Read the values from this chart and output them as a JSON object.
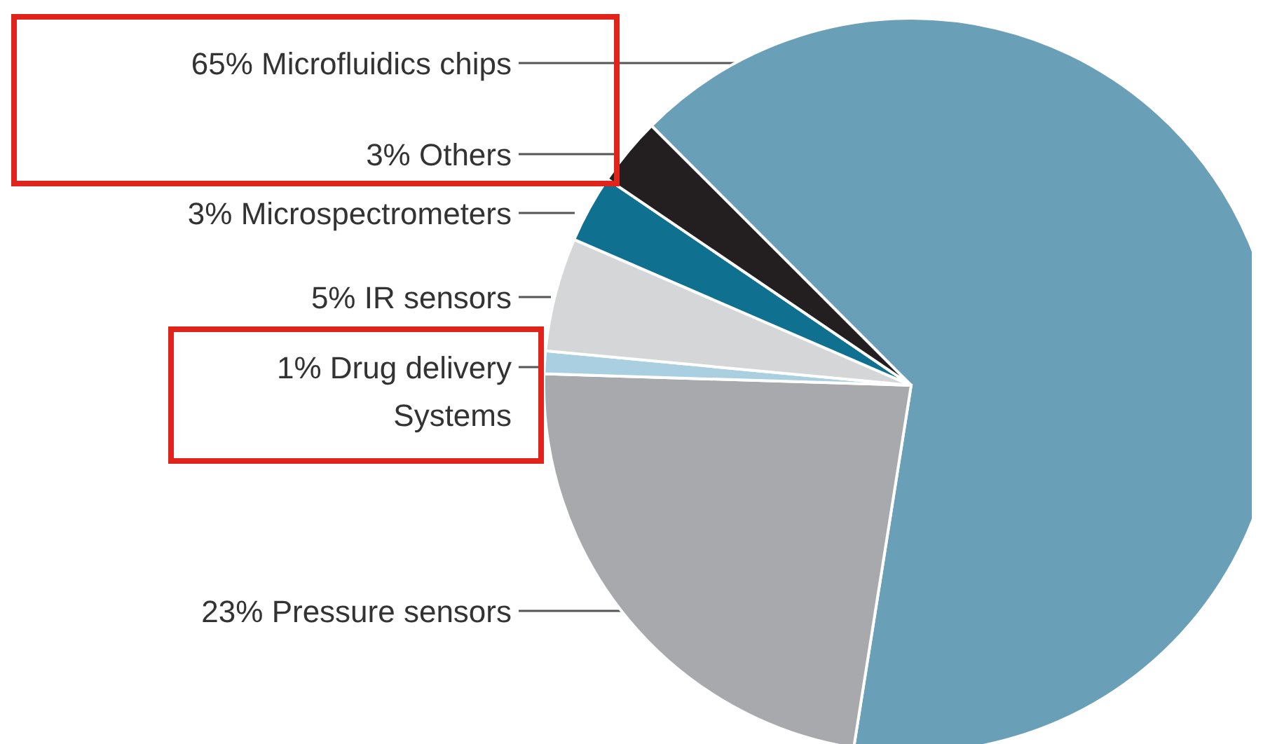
{
  "chart_data": {
    "type": "pie",
    "categories": [
      "Microfluidics chips",
      "Pressure sensors",
      "Drug delivery Systems",
      "IR sensors",
      "Microspectrometers",
      "Others"
    ],
    "values": [
      65,
      23,
      1,
      5,
      3,
      3
    ],
    "value_labels": [
      "65%",
      "23%",
      "1%",
      "5%",
      "3%",
      "3%"
    ],
    "colors": [
      "#6a9fb8",
      "#a7a9ac",
      "#a9cfe0",
      "#d5d6d8",
      "#0f7090",
      "#231f20"
    ]
  }
}
